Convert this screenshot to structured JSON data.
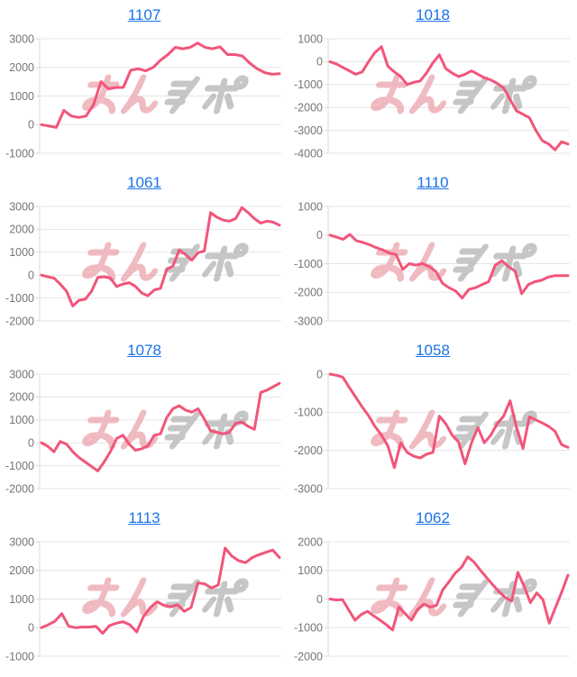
{
  "theme": {
    "link_color": "#1a73e8",
    "line_color": "#f2557a",
    "grid_color": "#e5e5e5",
    "axis_color": "#d9d9d9",
    "tick_label_color": "#757575",
    "background": "#ffffff",
    "watermark_pink": "#eca3ad",
    "watermark_gray": "#b3b3b3"
  },
  "watermark": {
    "text": "みんレポ",
    "pink_part": "みん",
    "gray_part": "レポ"
  },
  "chart_data": [
    {
      "type": "line",
      "title": "1107",
      "xlabel": "",
      "ylabel": "",
      "ylim": [
        -1000,
        3000
      ],
      "yticks": [
        3000,
        2000,
        1000,
        0,
        -1000
      ],
      "grid": true,
      "legend": false,
      "values": [
        0,
        -50,
        -100,
        500,
        300,
        250,
        300,
        700,
        1500,
        1250,
        1300,
        1300,
        1900,
        1950,
        1880,
        2000,
        2250,
        2450,
        2700,
        2650,
        2700,
        2850,
        2700,
        2650,
        2720,
        2450,
        2450,
        2400,
        2150,
        1950,
        1820,
        1760,
        1780
      ]
    },
    {
      "type": "line",
      "title": "1018",
      "xlabel": "",
      "ylabel": "",
      "ylim": [
        -4000,
        1000
      ],
      "yticks": [
        1000,
        0,
        -1000,
        -2000,
        -3000,
        -4000
      ],
      "grid": true,
      "legend": false,
      "values": [
        0,
        -100,
        -250,
        -400,
        -550,
        -450,
        0,
        400,
        650,
        -200,
        -450,
        -650,
        -1000,
        -900,
        -850,
        -500,
        -50,
        300,
        -300,
        -500,
        -650,
        -550,
        -400,
        -550,
        -700,
        -800,
        -950,
        -1150,
        -1650,
        -2150,
        -2300,
        -2450,
        -3000,
        -3450,
        -3600,
        -3850,
        -3500,
        -3600
      ]
    },
    {
      "type": "line",
      "title": "1061",
      "xlabel": "",
      "ylabel": "",
      "ylim": [
        -2000,
        3000
      ],
      "yticks": [
        3000,
        2000,
        1000,
        0,
        -1000,
        -2000
      ],
      "grid": true,
      "legend": false,
      "values": [
        0,
        -70,
        -130,
        -390,
        -700,
        -1350,
        -1100,
        -1050,
        -700,
        -100,
        -70,
        -130,
        -500,
        -390,
        -330,
        -490,
        -780,
        -900,
        -650,
        -580,
        250,
        400,
        1100,
        900,
        650,
        980,
        1050,
        2730,
        2530,
        2400,
        2360,
        2470,
        2950,
        2730,
        2470,
        2270,
        2360,
        2310,
        2180
      ]
    },
    {
      "type": "line",
      "title": "1110",
      "xlabel": "",
      "ylabel": "",
      "ylim": [
        -3000,
        1000
      ],
      "yticks": [
        1000,
        0,
        -1000,
        -2000,
        -3000
      ],
      "grid": true,
      "legend": false,
      "values": [
        0,
        -75,
        -150,
        20,
        -200,
        -260,
        -340,
        -440,
        -520,
        -630,
        -680,
        -1200,
        -1000,
        -1050,
        -1000,
        -1100,
        -1260,
        -1680,
        -1840,
        -1950,
        -2200,
        -1900,
        -1840,
        -1730,
        -1630,
        -1050,
        -900,
        -1100,
        -1260,
        -2050,
        -1730,
        -1630,
        -1580,
        -1470,
        -1420,
        -1420,
        -1420
      ]
    },
    {
      "type": "line",
      "title": "1078",
      "xlabel": "",
      "ylabel": "",
      "ylim": [
        -2000,
        3000
      ],
      "yticks": [
        3000,
        2000,
        1000,
        0,
        -1000,
        -2000
      ],
      "grid": true,
      "legend": false,
      "values": [
        0,
        -150,
        -390,
        60,
        -60,
        -390,
        -650,
        -840,
        -1040,
        -1230,
        -840,
        -390,
        190,
        330,
        -60,
        -330,
        -260,
        -130,
        330,
        390,
        1100,
        1490,
        1620,
        1430,
        1340,
        1490,
        1040,
        520,
        460,
        390,
        460,
        850,
        910,
        715,
        585,
        2200,
        2300,
        2450,
        2600
      ]
    },
    {
      "type": "line",
      "title": "1058",
      "xlabel": "",
      "ylabel": "",
      "ylim": [
        -3000,
        0
      ],
      "yticks": [
        0,
        -1000,
        -2000,
        -3000
      ],
      "grid": true,
      "legend": false,
      "values": [
        0,
        -30,
        -80,
        -350,
        -600,
        -860,
        -1090,
        -1370,
        -1600,
        -1880,
        -2450,
        -1800,
        -2050,
        -2150,
        -2200,
        -2100,
        -2050,
        -1100,
        -1300,
        -1600,
        -1780,
        -2350,
        -1800,
        -1400,
        -1800,
        -1600,
        -1300,
        -1100,
        -700,
        -1400,
        -1950,
        -1120,
        -1200,
        -1280,
        -1370,
        -1500,
        -1850,
        -1920
      ]
    },
    {
      "type": "line",
      "title": "1113",
      "xlabel": "",
      "ylabel": "",
      "ylim": [
        -1000,
        3000
      ],
      "yticks": [
        3000,
        2000,
        1000,
        0,
        -1000
      ],
      "grid": true,
      "legend": false,
      "values": [
        0,
        100,
        230,
        490,
        50,
        0,
        20,
        20,
        50,
        -200,
        70,
        155,
        210,
        100,
        -150,
        385,
        700,
        905,
        780,
        730,
        800,
        570,
        700,
        1560,
        1530,
        1385,
        1490,
        2780,
        2500,
        2340,
        2270,
        2450,
        2550,
        2630,
        2710,
        2450
      ]
    },
    {
      "type": "line",
      "title": "1062",
      "xlabel": "",
      "ylabel": "",
      "ylim": [
        -2000,
        2000
      ],
      "yticks": [
        2000,
        1000,
        0,
        -1000,
        -2000
      ],
      "grid": true,
      "legend": false,
      "values": [
        0,
        -30,
        -20,
        -380,
        -740,
        -540,
        -430,
        -590,
        -740,
        -900,
        -1080,
        -280,
        -510,
        -740,
        -360,
        -175,
        -280,
        -225,
        320,
        600,
        905,
        1110,
        1475,
        1290,
        1010,
        750,
        495,
        255,
        50,
        -70,
        930,
        445,
        -125,
        215,
        -20,
        -845,
        -300,
        250,
        835
      ]
    }
  ]
}
